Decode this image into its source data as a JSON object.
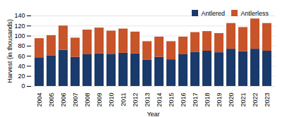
{
  "chart_data": {
    "type": "bar",
    "stacked": true,
    "categories": [
      "2004",
      "2005",
      "2006",
      "2007",
      "2008",
      "2009",
      "2010",
      "2011",
      "2012",
      "2013",
      "2014",
      "2015",
      "2016",
      "2017",
      "2018",
      "2019",
      "2020",
      "2021",
      "2022",
      "2023"
    ],
    "series": [
      {
        "name": "Antlered",
        "color": "#1a3a6b",
        "values": [
          57,
          61,
          72,
          58,
          63,
          65,
          64,
          66,
          65,
          52,
          58,
          53,
          63,
          68,
          70,
          67,
          74,
          69,
          74,
          70
        ]
      },
      {
        "name": "Antlerless",
        "color": "#c8542a",
        "values": [
          38,
          40,
          48,
          38,
          49,
          51,
          46,
          48,
          43,
          37,
          40,
          36,
          35,
          39,
          39,
          38,
          51,
          48,
          60,
          55
        ]
      }
    ],
    "xlabel": "Year",
    "ylabel": "Harvest (in thousands)",
    "ylim": [
      0,
      140
    ],
    "yticks": [
      0,
      20,
      40,
      60,
      80,
      100,
      120,
      140
    ],
    "grid": true,
    "legend": "upper right"
  }
}
